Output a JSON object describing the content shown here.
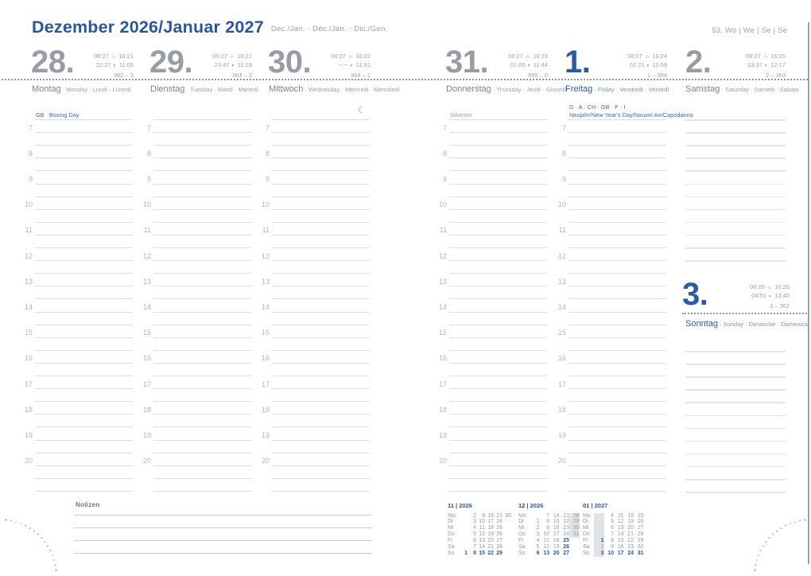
{
  "page": {
    "title": "Dezember 2026/Januar 2027",
    "subtitle": "Dec./Jan. · Déc./Jan. · Dic./Gen.",
    "week_info": "53. Wo | We | Se | Se",
    "notes_label": "Notizen"
  },
  "icons": {
    "sun": "☼",
    "moon": "◐",
    "crescent": "☾"
  },
  "colors": {
    "accent_blue": "#2a5ba3",
    "title_blue": "#27589e",
    "day_gray": "#989da5",
    "line_gray": "#d9dce0",
    "week_highlight": "#e2e3e6"
  },
  "hours": [
    "7",
    "8",
    "9",
    "10",
    "11",
    "12",
    "13",
    "14",
    "15",
    "16",
    "17",
    "18",
    "19",
    "20"
  ],
  "days": [
    {
      "number": "28.",
      "accent": false,
      "sunrise": "08:27",
      "sunset": "16:21",
      "moonrise": "22:27",
      "moonset": "11:05",
      "day_of_year": "362 – 3",
      "name": "Montag",
      "name_intl": "· Monday · Lundi · Lunedì",
      "holiday_lines": [
        "GB   Boxing Day"
      ],
      "holiday_blue": true,
      "name_blue": false,
      "moon_symbol": false
    },
    {
      "number": "29.",
      "accent": false,
      "sunrise": "08:27",
      "sunset": "16:21",
      "moonrise": "23:47",
      "moonset": "11:18",
      "day_of_year": "363 – 2",
      "name": "Dienstag",
      "name_intl": "· Tuesday · Mardi · Martedì",
      "holiday_lines": [],
      "holiday_blue": false,
      "name_blue": false,
      "moon_symbol": false
    },
    {
      "number": "30.",
      "accent": false,
      "sunrise": "08:27",
      "sunset": "16:22",
      "moonrise": "--:--",
      "moonset": "11:31",
      "day_of_year": "364 – 1",
      "name": "Mittwoch",
      "name_intl": "· Wednesday · Mercredi · Mercoledì",
      "holiday_lines": [],
      "holiday_blue": false,
      "name_blue": false,
      "moon_symbol": true
    },
    {
      "number": "31.",
      "accent": false,
      "sunrise": "08:27",
      "sunset": "16:23",
      "moonrise": "01:05",
      "moonset": "11:44",
      "day_of_year": "365 – 0",
      "name": "Donnerstag",
      "name_intl": "· Thursday · Jeudi · Giovedì",
      "holiday_lines": [
        "Silvester"
      ],
      "holiday_blue": false,
      "name_blue": false,
      "moon_symbol": false
    },
    {
      "number": "1.",
      "accent": true,
      "sunrise": "08:27",
      "sunset": "16:24",
      "moonrise": "02:21",
      "moonset": "11:59",
      "day_of_year": "1 – 364",
      "name": "Freitag",
      "name_intl": "· Friday · Vendredi · Venerdì",
      "holiday_lines": [
        "D · A · CH · GB · F · I",
        "Neujahr/New Year's Day/Nouvel An/Capodanno"
      ],
      "holiday_blue": true,
      "name_blue": true,
      "moon_symbol": false
    },
    {
      "number": "2.",
      "accent": false,
      "sunrise": "08:27",
      "sunset": "16:25",
      "moonrise": "03:37",
      "moonset": "12:17",
      "day_of_year": "2 – 363",
      "name": "Samstag",
      "name_intl": "· Saturday · Samedi · Sabato",
      "holiday_lines": [],
      "holiday_blue": false,
      "name_blue": false,
      "moon_symbol": false
    },
    {
      "number": "3.",
      "accent": true,
      "sunrise": "08:26",
      "sunset": "16:26",
      "moonrise": "04:51",
      "moonset": "12:40",
      "day_of_year": "3 – 362",
      "name": "Sonntag",
      "name_intl": "· Sunday · Dimanche · Domenica",
      "holiday_lines": [],
      "holiday_blue": false,
      "name_blue": true,
      "moon_symbol": false
    }
  ],
  "mini_calendars": [
    {
      "month": "11",
      "year": "2026",
      "rows": [
        {
          "label": "Mo",
          "cells": [
            "",
            "2",
            "9",
            "16",
            "23",
            "30"
          ]
        },
        {
          "label": "Di",
          "cells": [
            "",
            "3",
            "10",
            "17",
            "24",
            ""
          ]
        },
        {
          "label": "Mi",
          "cells": [
            "",
            "4",
            "11",
            "18",
            "25",
            ""
          ]
        },
        {
          "label": "Do",
          "cells": [
            "",
            "5",
            "12",
            "19",
            "26",
            ""
          ]
        },
        {
          "label": "Fr",
          "cells": [
            "",
            "6",
            "13",
            "20",
            "27",
            ""
          ]
        },
        {
          "label": "Sa",
          "cells": [
            "",
            "7",
            "14",
            "21",
            "28",
            ""
          ]
        },
        {
          "label": "So",
          "cells": [
            {
              "t": "1",
              "b": 1
            },
            {
              "t": "8",
              "b": 1
            },
            {
              "t": "15",
              "b": 1
            },
            {
              "t": "22",
              "b": 1
            },
            {
              "t": "29",
              "b": 1
            },
            ""
          ]
        }
      ]
    },
    {
      "month": "12",
      "year": "2026",
      "rows": [
        {
          "label": "Mo",
          "cells": [
            "",
            "7",
            "14",
            "21",
            {
              "t": "28",
              "h": 1
            }
          ]
        },
        {
          "label": "Di",
          "cells": [
            "1",
            "8",
            "15",
            "22",
            {
              "t": "29",
              "h": 1
            }
          ]
        },
        {
          "label": "Mi",
          "cells": [
            "2",
            "9",
            "16",
            "23",
            {
              "t": "30",
              "h": 1
            }
          ]
        },
        {
          "label": "Do",
          "cells": [
            "3",
            "10",
            "17",
            "24",
            {
              "t": "31",
              "h": 1
            }
          ]
        },
        {
          "label": "Fr",
          "cells": [
            "4",
            "11",
            "18",
            {
              "t": "25",
              "b": 1
            },
            ""
          ]
        },
        {
          "label": "Sa",
          "cells": [
            "5",
            "12",
            "19",
            {
              "t": "26",
              "b": 1
            },
            ""
          ]
        },
        {
          "label": "So",
          "cells": [
            {
              "t": "6",
              "b": 1
            },
            {
              "t": "13",
              "b": 1
            },
            {
              "t": "20",
              "b": 1
            },
            {
              "t": "27",
              "b": 1
            },
            ""
          ]
        }
      ]
    },
    {
      "month": "01",
      "year": "2027",
      "rows": [
        {
          "label": "Mo",
          "cells": [
            {
              "t": "",
              "h": 1
            },
            "4",
            "11",
            "18",
            "25"
          ]
        },
        {
          "label": "Di",
          "cells": [
            {
              "t": "",
              "h": 1
            },
            "5",
            "12",
            "19",
            "26"
          ]
        },
        {
          "label": "Mi",
          "cells": [
            {
              "t": "",
              "h": 1
            },
            "6",
            "13",
            "20",
            "27"
          ]
        },
        {
          "label": "Do",
          "cells": [
            {
              "t": "",
              "h": 1
            },
            "7",
            "14",
            "21",
            "28"
          ]
        },
        {
          "label": "Fr",
          "cells": [
            {
              "t": "1",
              "b": 1,
              "h": 1
            },
            "8",
            "15",
            "22",
            "29"
          ]
        },
        {
          "label": "Sa",
          "cells": [
            {
              "t": "2",
              "h": 1
            },
            "9",
            "16",
            "23",
            "30"
          ]
        },
        {
          "label": "So",
          "cells": [
            {
              "t": "3",
              "b": 1,
              "h": 1
            },
            {
              "t": "10",
              "b": 1
            },
            {
              "t": "17",
              "b": 1
            },
            {
              "t": "24",
              "b": 1
            },
            {
              "t": "31",
              "b": 1
            }
          ]
        }
      ]
    }
  ]
}
